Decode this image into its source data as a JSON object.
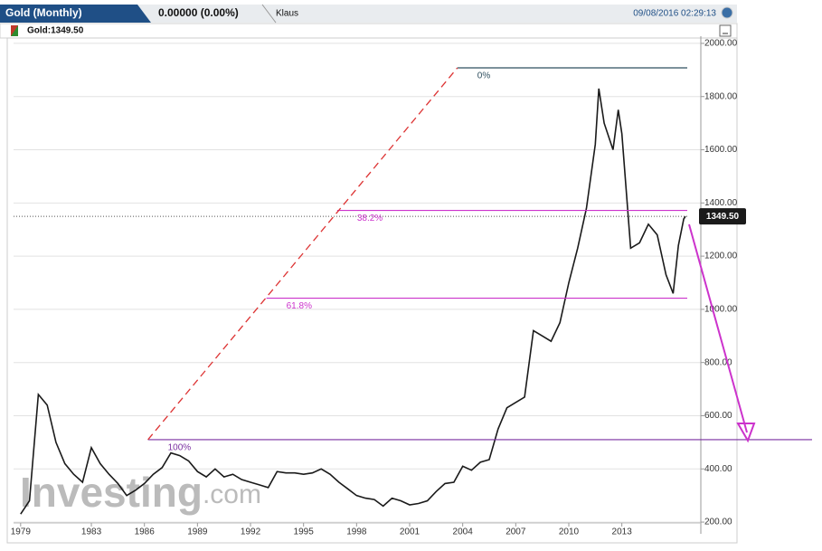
{
  "header": {
    "tab": "Gold (Monthly)",
    "change": "0.00000 (0.00%)",
    "user": "Klaus",
    "timestamp": "09/08/2016 02:29:13",
    "legend": "Gold:1349.50"
  },
  "watermark": {
    "main": "Investing",
    "suffix": ".com"
  },
  "chart_data": {
    "type": "line",
    "series": [
      {
        "name": "Gold",
        "color": "#1a1a1a",
        "x": [
          1979.0,
          1979.5,
          1980.0,
          1980.5,
          1981.0,
          1981.5,
          1982.0,
          1982.5,
          1983.0,
          1983.5,
          1984.0,
          1984.5,
          1985.0,
          1985.5,
          1986.0,
          1986.5,
          1987.0,
          1987.5,
          1988.0,
          1988.5,
          1989.0,
          1989.5,
          1990.0,
          1990.5,
          1991.0,
          1991.5,
          1992.0,
          1992.5,
          1993.0,
          1993.5,
          1994.0,
          1994.5,
          1995.0,
          1995.5,
          1996.0,
          1996.5,
          1997.0,
          1997.5,
          1998.0,
          1998.5,
          1999.0,
          1999.5,
          2000.0,
          2000.5,
          2001.0,
          2001.5,
          2002.0,
          2002.5,
          2003.0,
          2003.5,
          2004.0,
          2004.5,
          2005.0,
          2005.5,
          2006.0,
          2006.5,
          2007.0,
          2007.5,
          2008.0,
          2008.5,
          2009.0,
          2009.5,
          2010.0,
          2010.5,
          2011.0,
          2011.5,
          2011.7,
          2012.0,
          2012.5,
          2012.8,
          2013.0,
          2013.5,
          2014.0,
          2014.5,
          2015.0,
          2015.5,
          2015.9,
          2016.2,
          2016.5,
          2016.6
        ],
        "values": [
          230,
          280,
          680,
          640,
          500,
          420,
          380,
          350,
          480,
          420,
          380,
          345,
          300,
          320,
          345,
          380,
          405,
          460,
          450,
          430,
          390,
          370,
          400,
          370,
          380,
          360,
          350,
          340,
          330,
          390,
          385,
          385,
          380,
          385,
          400,
          380,
          350,
          325,
          300,
          290,
          285,
          260,
          290,
          280,
          265,
          270,
          280,
          315,
          345,
          350,
          410,
          395,
          425,
          435,
          550,
          630,
          650,
          670,
          920,
          900,
          880,
          950,
          1100,
          1230,
          1380,
          1620,
          1830,
          1700,
          1600,
          1750,
          1660,
          1230,
          1250,
          1320,
          1280,
          1130,
          1060,
          1240,
          1340,
          1349.5
        ]
      }
    ],
    "last_price": {
      "value": 1349.5,
      "label": "1349.50"
    },
    "fib_levels": [
      {
        "label": "0%",
        "value": 1908,
        "x_start": 2003.7,
        "color": "#2f4f5f"
      },
      {
        "label": "38.2%",
        "value": 1372,
        "x_start": 1996.9,
        "color": "#cc33cc"
      },
      {
        "label": "61.8%",
        "value": 1042,
        "x_start": 1992.9,
        "color": "#cc33cc"
      },
      {
        "label": "100%",
        "value": 510,
        "x_start": 1986.2,
        "color": "#7a2fa0"
      }
    ],
    "trendline": {
      "x": [
        1986.2,
        2003.7
      ],
      "y": [
        510,
        1908
      ],
      "color": "#dd3333"
    },
    "xlim": [
      1978.6,
      2016.7
    ],
    "ylim": [
      156,
      2027
    ],
    "xticks": [
      1979,
      1983,
      1986,
      1989,
      1992,
      1995,
      1998,
      2001,
      2004,
      2007,
      2010,
      2013
    ],
    "yticks": [
      {
        "value": 200,
        "label": "200.00"
      },
      {
        "value": 400,
        "label": "400.00"
      },
      {
        "value": 600,
        "label": "600.00"
      },
      {
        "value": 800,
        "label": "800.00"
      },
      {
        "value": 1000,
        "label": "1000.00"
      },
      {
        "value": 1200,
        "label": "1200.00"
      },
      {
        "value": 1400,
        "label": "1400.00"
      },
      {
        "value": 1600,
        "label": "1600.00"
      },
      {
        "value": 1800,
        "label": "1800.00"
      },
      {
        "value": 2000,
        "label": "2000.00"
      }
    ],
    "grid": true
  }
}
